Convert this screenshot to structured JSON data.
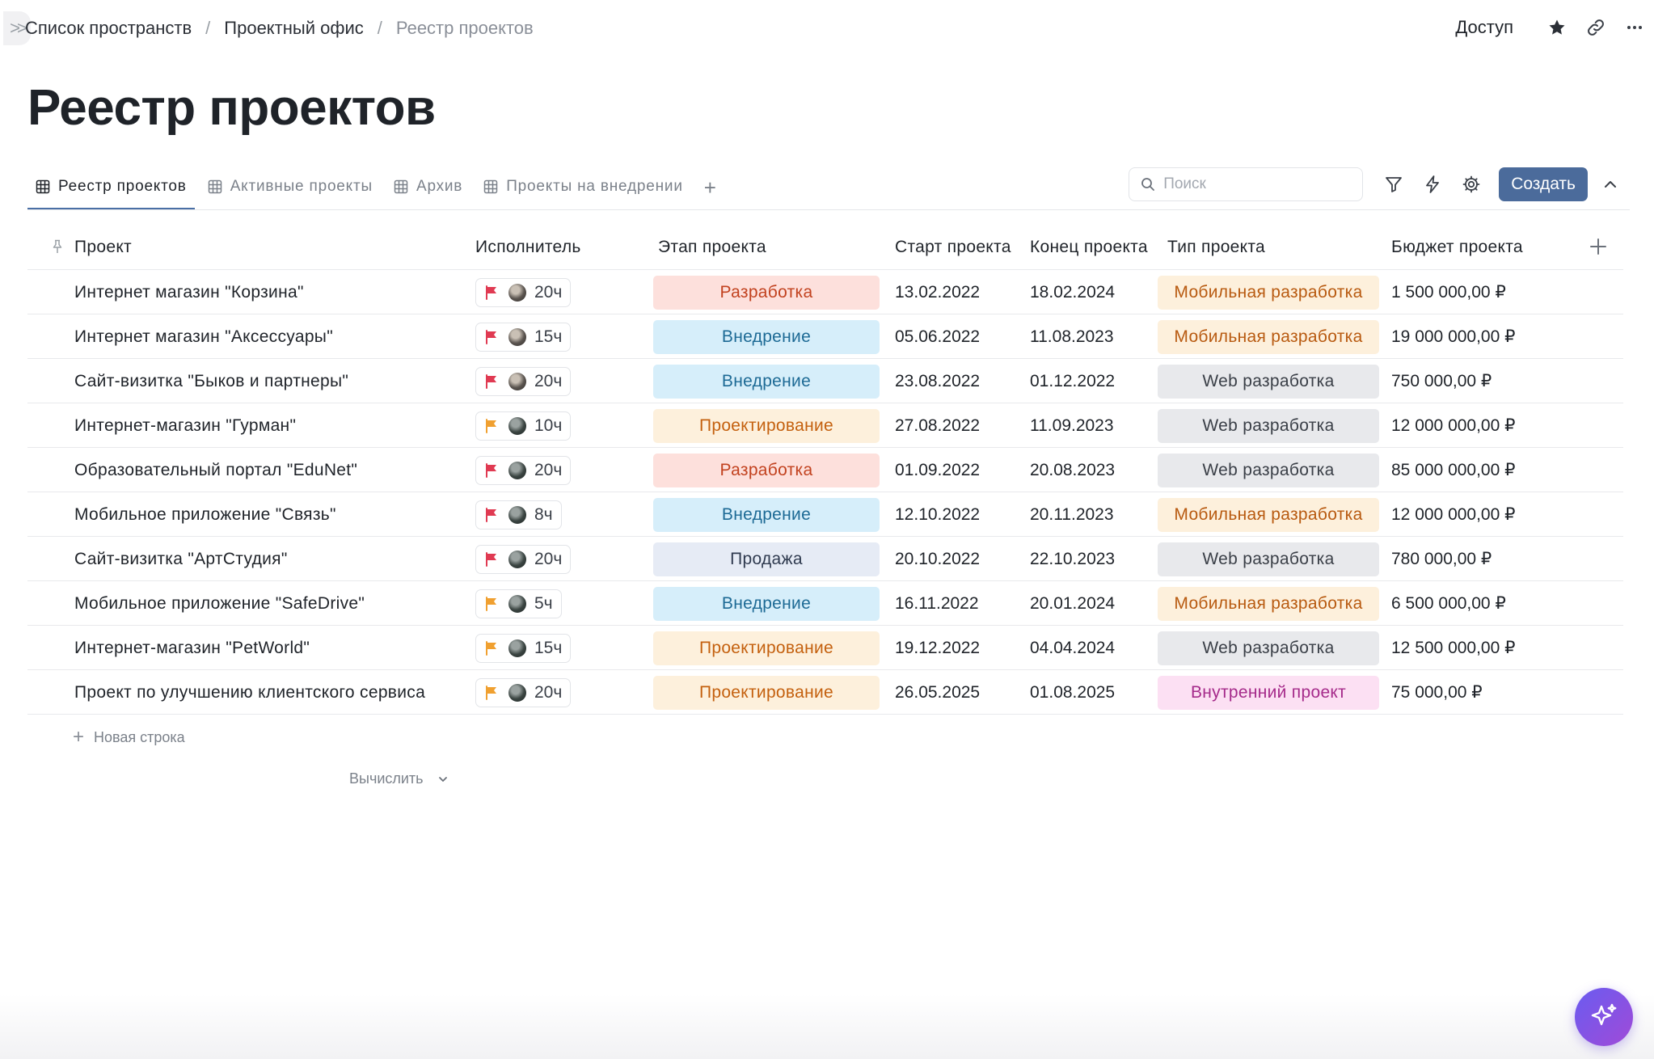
{
  "breadcrumb": {
    "items": [
      "Список пространств",
      "Проектный офис"
    ],
    "current": "Реестр проектов"
  },
  "top_actions": {
    "access_label": "Доступ",
    "icons": [
      "star-icon",
      "link-icon",
      "more-icon"
    ]
  },
  "page_title": "Реестр проектов",
  "tabs": [
    {
      "label": "Реестр проектов",
      "active": true
    },
    {
      "label": "Активные проекты",
      "active": false
    },
    {
      "label": "Архив",
      "active": false
    },
    {
      "label": "Проекты на внедрении",
      "active": false
    }
  ],
  "toolbar": {
    "search_placeholder": "Поиск",
    "search_value": "",
    "create_label": "Создать"
  },
  "table": {
    "columns": [
      "Проект",
      "Исполнитель",
      "Этап проекта",
      "Старт проекта",
      "Конец проекта",
      "Тип проекта",
      "Бюджет проекта"
    ],
    "rows": [
      {
        "project": "Интернет магазин \"Корзина\"",
        "flag": "red",
        "avatar": "light",
        "hours": "20ч",
        "stage": "Разработка",
        "start": "13.02.2022",
        "end": "18.02.2024",
        "type": "Мобильная разработка",
        "budget": "1 500 000,00 ₽"
      },
      {
        "project": "Интернет магазин \"Аксессуары\"",
        "flag": "red",
        "avatar": "light",
        "hours": "15ч",
        "stage": "Внедрение",
        "start": "05.06.2022",
        "end": "11.08.2023",
        "type": "Мобильная разработка",
        "budget": "19 000 000,00 ₽"
      },
      {
        "project": "Сайт-визитка \"Быков и партнеры\"",
        "flag": "red",
        "avatar": "light",
        "hours": "20ч",
        "stage": "Внедрение",
        "start": "23.08.2022",
        "end": "01.12.2022",
        "type": "Web разработка",
        "budget": "750 000,00 ₽"
      },
      {
        "project": "Интернет-магазин \"Гурман\"",
        "flag": "orange",
        "avatar": "dark",
        "hours": "10ч",
        "stage": "Проектирование",
        "start": "27.08.2022",
        "end": "11.09.2023",
        "type": "Web разработка",
        "budget": "12 000 000,00 ₽"
      },
      {
        "project": "Образовательный портал \"EduNet\"",
        "flag": "red",
        "avatar": "dark",
        "hours": "20ч",
        "stage": "Разработка",
        "start": "01.09.2022",
        "end": "20.08.2023",
        "type": "Web разработка",
        "budget": "85 000 000,00 ₽"
      },
      {
        "project": "Мобильное приложение \"Связь\"",
        "flag": "red",
        "avatar": "dark",
        "hours": "8ч",
        "stage": "Внедрение",
        "start": "12.10.2022",
        "end": "20.11.2023",
        "type": "Мобильная разработка",
        "budget": "12 000 000,00 ₽"
      },
      {
        "project": "Сайт-визитка \"АртСтудия\"",
        "flag": "red",
        "avatar": "dark",
        "hours": "20ч",
        "stage": "Продажа",
        "start": "20.10.2022",
        "end": "22.10.2023",
        "type": "Web разработка",
        "budget": "780 000,00 ₽"
      },
      {
        "project": "Мобильное приложение \"SafeDrive\"",
        "flag": "orange",
        "avatar": "dark",
        "hours": "5ч",
        "stage": "Внедрение",
        "start": "16.11.2022",
        "end": "20.01.2024",
        "type": "Мобильная разработка",
        "budget": "6 500 000,00 ₽"
      },
      {
        "project": "Интернет-магазин \"PetWorld\"",
        "flag": "orange",
        "avatar": "dark",
        "hours": "15ч",
        "stage": "Проектирование",
        "start": "19.12.2022",
        "end": "04.04.2024",
        "type": "Web разработка",
        "budget": "12 500 000,00 ₽"
      },
      {
        "project": "Проект по улучшению клиентского сервиса",
        "flag": "orange",
        "avatar": "dark",
        "hours": "20ч",
        "stage": "Проектирование",
        "start": "26.05.2025",
        "end": "01.08.2025",
        "type": "Внутренний проект",
        "budget": "75 000,00 ₽"
      }
    ],
    "new_row_label": "Новая строка",
    "compute_label": "Вычислить"
  },
  "colors": {
    "accent": "#4b6b9b",
    "flag_red": "#e03a52",
    "flag_orange": "#f0a030",
    "stage": {
      "Разработка": {
        "bg": "#fde0dc",
        "fg": "#c2421f"
      },
      "Внедрение": {
        "bg": "#d6eefa",
        "fg": "#1d6a95"
      },
      "Проектирование": {
        "bg": "#fdf0dc",
        "fg": "#c4600e"
      },
      "Продажа": {
        "bg": "#e6ebf5",
        "fg": "#2f3a4f"
      }
    },
    "type": {
      "Мобильная разработка": {
        "bg": "#fdf0dc",
        "fg": "#b85a10"
      },
      "Web разработка": {
        "bg": "#e8e9ec",
        "fg": "#3a3f47"
      },
      "Внутренний проект": {
        "bg": "#fce0f3",
        "fg": "#a52a8a"
      }
    }
  }
}
